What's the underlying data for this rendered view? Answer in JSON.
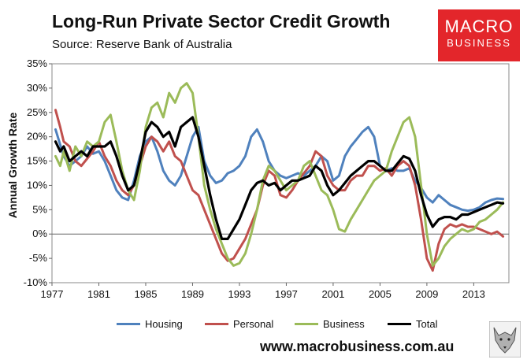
{
  "title": "Long-Run Private Sector Credit Growth",
  "subtitle": "Source: Reserve Bank of Australia",
  "logo": {
    "line1": "MACRO",
    "line2": "BUSINESS"
  },
  "footer_url": "www.macrobusiness.com.au",
  "colors": {
    "Housing": "#4f81bd",
    "Personal": "#c0504d",
    "Business": "#9bbb59",
    "Total": "#000000"
  },
  "icons": {
    "corner_image": "wolf-icon"
  },
  "chart_data": {
    "type": "line",
    "title": "Long-Run Private Sector Credit Growth",
    "xlabel": "",
    "ylabel": "Annual Growth Rate",
    "xlim": [
      1977,
      2016
    ],
    "ylim": [
      -10,
      35
    ],
    "x_ticks": [
      1977,
      1981,
      1985,
      1989,
      1993,
      1997,
      2001,
      2005,
      2009,
      2013
    ],
    "y_ticks": [
      -10,
      -5,
      0,
      5,
      10,
      15,
      20,
      25,
      30,
      35
    ],
    "y_tick_labels": [
      "-10%",
      "-5%",
      "0%",
      "5%",
      "10%",
      "15%",
      "20%",
      "25%",
      "30%",
      "35%"
    ],
    "grid": false,
    "legend": "bottom",
    "series": [
      {
        "name": "Housing",
        "points": [
          [
            1977.3,
            21.5
          ],
          [
            1978,
            16
          ],
          [
            1978.5,
            14
          ],
          [
            1979,
            15
          ],
          [
            1979.5,
            16
          ],
          [
            1980,
            18
          ],
          [
            1980.5,
            16.5
          ],
          [
            1981,
            17
          ],
          [
            1981.5,
            15
          ],
          [
            1982,
            12
          ],
          [
            1982.5,
            9
          ],
          [
            1983,
            7.5
          ],
          [
            1983.5,
            7
          ],
          [
            1984,
            11
          ],
          [
            1984.5,
            16
          ],
          [
            1985,
            19
          ],
          [
            1985.5,
            20
          ],
          [
            1986,
            17
          ],
          [
            1986.5,
            13
          ],
          [
            1987,
            11
          ],
          [
            1987.5,
            10
          ],
          [
            1988,
            12
          ],
          [
            1988.5,
            16
          ],
          [
            1989,
            20
          ],
          [
            1989.5,
            22
          ],
          [
            1990,
            15
          ],
          [
            1990.5,
            12
          ],
          [
            1991,
            10.5
          ],
          [
            1991.5,
            11
          ],
          [
            1992,
            12.5
          ],
          [
            1992.5,
            13
          ],
          [
            1993,
            14
          ],
          [
            1993.5,
            16
          ],
          [
            1994,
            20
          ],
          [
            1994.5,
            21.5
          ],
          [
            1995,
            19
          ],
          [
            1995.5,
            15
          ],
          [
            1996,
            13
          ],
          [
            1996.5,
            12
          ],
          [
            1997,
            11.5
          ],
          [
            1997.5,
            12
          ],
          [
            1998,
            12.5
          ],
          [
            1998.5,
            12
          ],
          [
            1999,
            13
          ],
          [
            1999.5,
            14
          ],
          [
            2000,
            16
          ],
          [
            2000.5,
            15
          ],
          [
            2001,
            11
          ],
          [
            2001.5,
            12
          ],
          [
            2002,
            16
          ],
          [
            2002.5,
            18
          ],
          [
            2003,
            19.5
          ],
          [
            2003.5,
            21
          ],
          [
            2004,
            22
          ],
          [
            2004.5,
            20
          ],
          [
            2005,
            14
          ],
          [
            2005.5,
            13
          ],
          [
            2006,
            13.5
          ],
          [
            2006.5,
            13
          ],
          [
            2007,
            13
          ],
          [
            2007.5,
            13.5
          ],
          [
            2008,
            11
          ],
          [
            2008.5,
            9.5
          ],
          [
            2009,
            7.5
          ],
          [
            2009.5,
            6.5
          ],
          [
            2010,
            8
          ],
          [
            2010.5,
            7
          ],
          [
            2011,
            6
          ],
          [
            2011.5,
            5.5
          ],
          [
            2012,
            5
          ],
          [
            2012.5,
            4.8
          ],
          [
            2013,
            5
          ],
          [
            2013.5,
            5.5
          ],
          [
            2014,
            6.5
          ],
          [
            2014.5,
            7
          ],
          [
            2015,
            7.3
          ],
          [
            2015.5,
            7.2
          ]
        ]
      },
      {
        "name": "Personal",
        "points": [
          [
            1977.3,
            25.5
          ],
          [
            1977.7,
            22
          ],
          [
            1978,
            19
          ],
          [
            1978.5,
            18
          ],
          [
            1979,
            15
          ],
          [
            1979.5,
            14
          ],
          [
            1980,
            15.5
          ],
          [
            1980.5,
            17
          ],
          [
            1981,
            19
          ],
          [
            1981.5,
            16
          ],
          [
            1982,
            14
          ],
          [
            1982.5,
            11
          ],
          [
            1983,
            9
          ],
          [
            1983.5,
            8
          ],
          [
            1984,
            10
          ],
          [
            1984.5,
            14
          ],
          [
            1985,
            18
          ],
          [
            1985.5,
            20
          ],
          [
            1986,
            19
          ],
          [
            1986.5,
            17
          ],
          [
            1987,
            19
          ],
          [
            1987.5,
            16
          ],
          [
            1988,
            15
          ],
          [
            1988.5,
            12
          ],
          [
            1989,
            9
          ],
          [
            1989.5,
            8
          ],
          [
            1990,
            5
          ],
          [
            1990.5,
            2
          ],
          [
            1991,
            -1
          ],
          [
            1991.5,
            -4
          ],
          [
            1992,
            -5.5
          ],
          [
            1992.5,
            -5
          ],
          [
            1993,
            -3
          ],
          [
            1993.5,
            -1
          ],
          [
            1994,
            2
          ],
          [
            1994.5,
            5
          ],
          [
            1995,
            10
          ],
          [
            1995.5,
            13
          ],
          [
            1996,
            12
          ],
          [
            1996.5,
            8
          ],
          [
            1997,
            7.5
          ],
          [
            1997.5,
            9
          ],
          [
            1998,
            11
          ],
          [
            1998.5,
            12.5
          ],
          [
            1999,
            14
          ],
          [
            1999.5,
            17
          ],
          [
            2000,
            16
          ],
          [
            2000.5,
            12
          ],
          [
            2001,
            10
          ],
          [
            2001.5,
            9
          ],
          [
            2002,
            9
          ],
          [
            2002.5,
            11
          ],
          [
            2003,
            12
          ],
          [
            2003.5,
            12
          ],
          [
            2004,
            14
          ],
          [
            2004.5,
            14
          ],
          [
            2005,
            13
          ],
          [
            2005.5,
            13.5
          ],
          [
            2006,
            12
          ],
          [
            2006.5,
            14
          ],
          [
            2007,
            15
          ],
          [
            2007.5,
            14
          ],
          [
            2008,
            10
          ],
          [
            2008.5,
            3
          ],
          [
            2009,
            -5
          ],
          [
            2009.5,
            -7.5
          ],
          [
            2010,
            -2
          ],
          [
            2010.5,
            1
          ],
          [
            2011,
            2
          ],
          [
            2011.5,
            1.5
          ],
          [
            2012,
            2
          ],
          [
            2012.5,
            1.5
          ],
          [
            2013,
            1.5
          ],
          [
            2013.5,
            1
          ],
          [
            2014,
            0.5
          ],
          [
            2014.5,
            0
          ],
          [
            2015,
            0.5
          ],
          [
            2015.5,
            -0.5
          ]
        ]
      },
      {
        "name": "Business",
        "points": [
          [
            1977.3,
            16
          ],
          [
            1977.7,
            14
          ],
          [
            1978,
            17
          ],
          [
            1978.5,
            13
          ],
          [
            1979,
            18
          ],
          [
            1979.5,
            16
          ],
          [
            1980,
            19
          ],
          [
            1980.5,
            18
          ],
          [
            1981,
            19
          ],
          [
            1981.5,
            23
          ],
          [
            1982,
            24.5
          ],
          [
            1982.5,
            19
          ],
          [
            1983,
            13
          ],
          [
            1983.5,
            9
          ],
          [
            1984,
            7
          ],
          [
            1984.5,
            13
          ],
          [
            1985,
            22
          ],
          [
            1985.5,
            26
          ],
          [
            1986,
            27
          ],
          [
            1986.5,
            24
          ],
          [
            1987,
            29
          ],
          [
            1987.5,
            27
          ],
          [
            1988,
            30
          ],
          [
            1988.5,
            31
          ],
          [
            1989,
            29
          ],
          [
            1989.5,
            20
          ],
          [
            1990,
            10
          ],
          [
            1990.5,
            5
          ],
          [
            1991,
            1
          ],
          [
            1991.5,
            -2
          ],
          [
            1992,
            -5
          ],
          [
            1992.5,
            -6.5
          ],
          [
            1993,
            -6
          ],
          [
            1993.5,
            -4
          ],
          [
            1994,
            0
          ],
          [
            1994.5,
            5
          ],
          [
            1995,
            11
          ],
          [
            1995.5,
            14
          ],
          [
            1996,
            13
          ],
          [
            1996.5,
            11
          ],
          [
            1997,
            9
          ],
          [
            1997.5,
            10
          ],
          [
            1998,
            11
          ],
          [
            1998.5,
            14
          ],
          [
            1999,
            15
          ],
          [
            1999.5,
            12
          ],
          [
            2000,
            9
          ],
          [
            2000.5,
            8
          ],
          [
            2001,
            5
          ],
          [
            2001.5,
            1
          ],
          [
            2002,
            0.5
          ],
          [
            2002.5,
            3
          ],
          [
            2003,
            5
          ],
          [
            2003.5,
            7
          ],
          [
            2004,
            9
          ],
          [
            2004.5,
            11
          ],
          [
            2005,
            12
          ],
          [
            2005.5,
            13
          ],
          [
            2006,
            17
          ],
          [
            2006.5,
            20
          ],
          [
            2007,
            23
          ],
          [
            2007.5,
            24
          ],
          [
            2008,
            20
          ],
          [
            2008.5,
            10
          ],
          [
            2009,
            0
          ],
          [
            2009.5,
            -6.5
          ],
          [
            2010,
            -5
          ],
          [
            2010.5,
            -2.5
          ],
          [
            2011,
            -1
          ],
          [
            2011.5,
            0
          ],
          [
            2012,
            1
          ],
          [
            2012.5,
            0.5
          ],
          [
            2013,
            1
          ],
          [
            2013.5,
            2.5
          ],
          [
            2014,
            3
          ],
          [
            2014.5,
            4
          ],
          [
            2015,
            5
          ],
          [
            2015.5,
            6.5
          ]
        ]
      },
      {
        "name": "Total",
        "points": [
          [
            1977.3,
            19
          ],
          [
            1977.7,
            17
          ],
          [
            1978,
            18
          ],
          [
            1978.5,
            15
          ],
          [
            1979,
            16
          ],
          [
            1979.5,
            17
          ],
          [
            1980,
            16
          ],
          [
            1980.5,
            18
          ],
          [
            1981,
            18
          ],
          [
            1981.5,
            18
          ],
          [
            1982,
            19
          ],
          [
            1982.5,
            16
          ],
          [
            1983,
            12
          ],
          [
            1983.5,
            9
          ],
          [
            1984,
            10
          ],
          [
            1984.5,
            15
          ],
          [
            1985,
            21
          ],
          [
            1985.5,
            23
          ],
          [
            1986,
            22
          ],
          [
            1986.5,
            20
          ],
          [
            1987,
            21
          ],
          [
            1987.5,
            18
          ],
          [
            1988,
            22
          ],
          [
            1988.5,
            23
          ],
          [
            1989,
            24
          ],
          [
            1989.5,
            20
          ],
          [
            1990,
            14
          ],
          [
            1990.5,
            8
          ],
          [
            1991,
            3
          ],
          [
            1991.5,
            -1
          ],
          [
            1992,
            -1
          ],
          [
            1992.5,
            1
          ],
          [
            1993,
            3
          ],
          [
            1993.5,
            6
          ],
          [
            1994,
            9
          ],
          [
            1994.5,
            10.5
          ],
          [
            1995,
            11
          ],
          [
            1995.5,
            10
          ],
          [
            1996,
            10.5
          ],
          [
            1996.5,
            9
          ],
          [
            1997,
            10
          ],
          [
            1997.5,
            11
          ],
          [
            1998,
            11
          ],
          [
            1998.5,
            11.5
          ],
          [
            1999,
            12
          ],
          [
            1999.5,
            14
          ],
          [
            2000,
            13
          ],
          [
            2000.5,
            10
          ],
          [
            2001,
            8
          ],
          [
            2001.5,
            9
          ],
          [
            2002,
            10.5
          ],
          [
            2002.5,
            12
          ],
          [
            2003,
            13
          ],
          [
            2003.5,
            14
          ],
          [
            2004,
            15
          ],
          [
            2004.5,
            15
          ],
          [
            2005,
            14
          ],
          [
            2005.5,
            13
          ],
          [
            2006,
            13
          ],
          [
            2006.5,
            14.5
          ],
          [
            2007,
            16
          ],
          [
            2007.5,
            15.5
          ],
          [
            2008,
            13
          ],
          [
            2008.5,
            8
          ],
          [
            2009,
            4
          ],
          [
            2009.5,
            1.5
          ],
          [
            2010,
            3
          ],
          [
            2010.5,
            3.5
          ],
          [
            2011,
            3.5
          ],
          [
            2011.5,
            3
          ],
          [
            2012,
            4
          ],
          [
            2012.5,
            4
          ],
          [
            2013,
            4.5
          ],
          [
            2013.5,
            5
          ],
          [
            2014,
            5.5
          ],
          [
            2014.5,
            6
          ],
          [
            2015,
            6.5
          ],
          [
            2015.5,
            6.3
          ]
        ]
      }
    ]
  }
}
